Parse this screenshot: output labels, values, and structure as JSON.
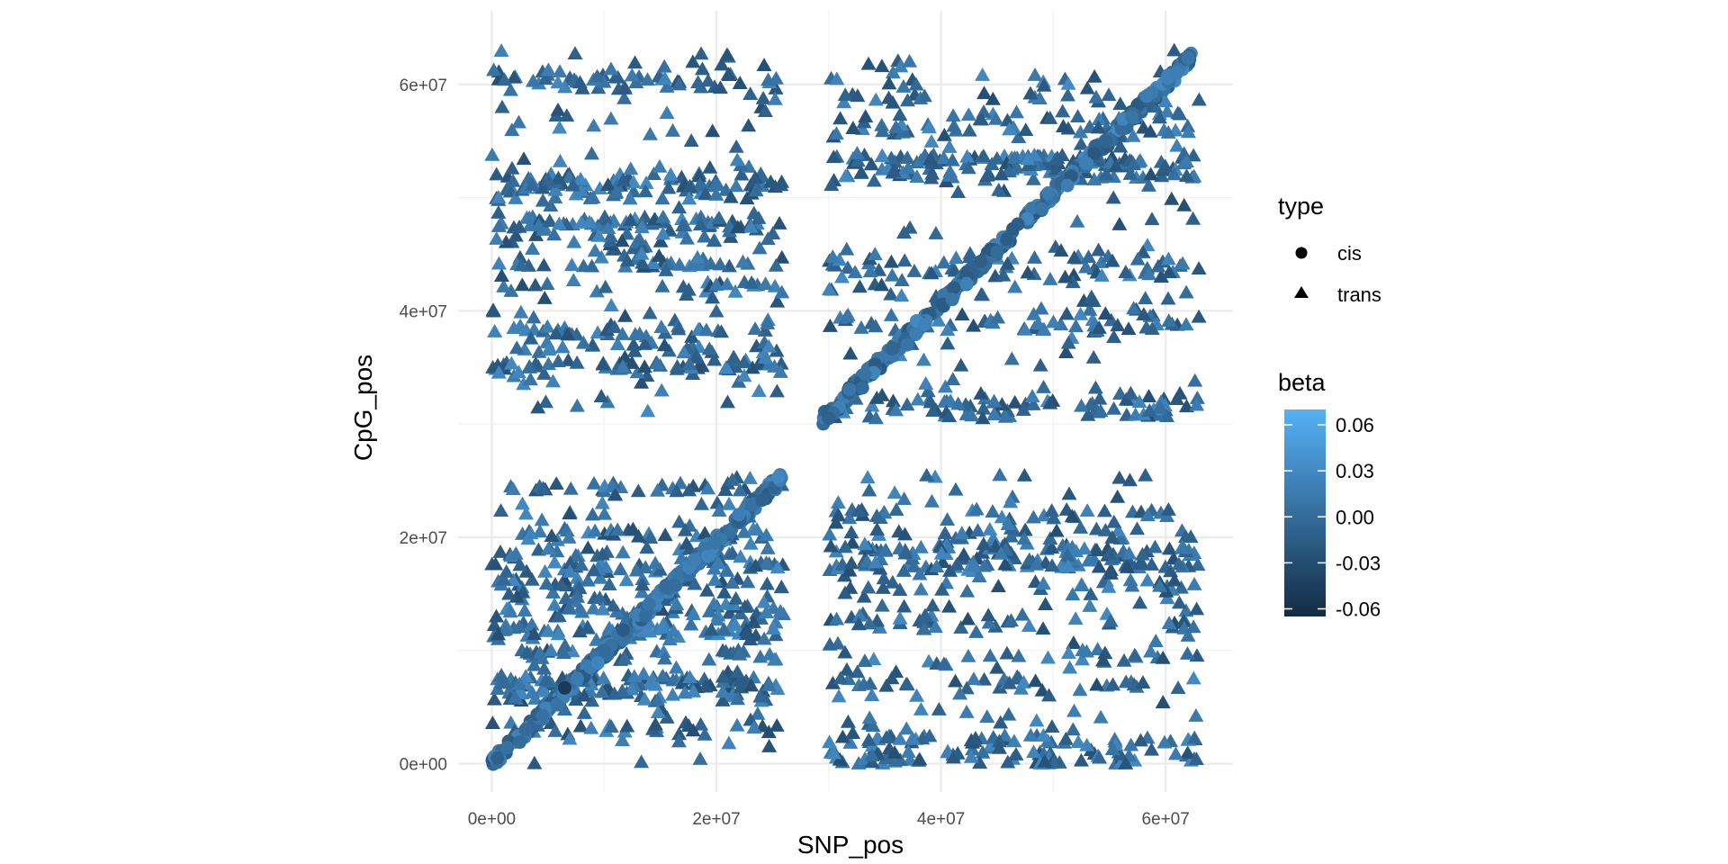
{
  "chart_data": {
    "type": "scatter",
    "title": "",
    "xlabel": "SNP_pos",
    "ylabel": "CpG_pos",
    "xlim": [
      -3000000,
      66000000
    ],
    "ylim": [
      -2500000,
      66500000
    ],
    "x_ticks": [
      0,
      20000000,
      40000000,
      60000000
    ],
    "x_tick_labels": [
      "0e+00",
      "2e+07",
      "4e+07",
      "6e+07"
    ],
    "y_ticks": [
      0,
      20000000,
      40000000,
      60000000
    ],
    "y_tick_labels": [
      "0e+00",
      "2e+07",
      "4e+07",
      "6e+07"
    ],
    "grid": true,
    "legend_position": "right",
    "shape_legend": {
      "title": "type",
      "entries": [
        {
          "label": "cis",
          "shape": "circle"
        },
        {
          "label": "trans",
          "shape": "triangle"
        }
      ]
    },
    "color_legend": {
      "title": "beta",
      "range": [
        -0.065,
        0.07
      ],
      "breaks": [
        0.06,
        0.03,
        0.0,
        -0.03,
        -0.06
      ],
      "break_labels": [
        "0.06",
        "0.03",
        "0.00",
        "-0.03",
        "-0.06"
      ],
      "low_color": "#132B43",
      "high_color": "#56B1F7"
    },
    "series": [
      {
        "name": "cis",
        "shape": "circle",
        "description_segments": [
          {
            "x_range": [
              0,
              26000000
            ],
            "y_relation": "y ≈ x",
            "y_range": [
              0,
              25500000
            ]
          },
          {
            "x_range": [
              29500000,
              62500000
            ],
            "y_relation": "y ≈ x",
            "y_range": [
              30500000,
              62500000
            ]
          }
        ],
        "points_approx": [
          [
            500000,
            500000,
            -0.01
          ],
          [
            3000000,
            3000000,
            0.0
          ],
          [
            6500000,
            6700000,
            -0.05
          ],
          [
            10000000,
            10000000,
            0.0
          ],
          [
            14000000,
            14100000,
            0.01
          ],
          [
            18000000,
            18000000,
            0.02
          ],
          [
            22000000,
            22000000,
            0.02
          ],
          [
            25500000,
            25300000,
            0.03
          ],
          [
            30000000,
            30500000,
            -0.01
          ],
          [
            33000000,
            33200000,
            0.0
          ],
          [
            37000000,
            37000000,
            0.01
          ],
          [
            41000000,
            41000000,
            0.01
          ],
          [
            45000000,
            45200000,
            0.0
          ],
          [
            49000000,
            49000000,
            0.01
          ],
          [
            53000000,
            53000000,
            0.02
          ],
          [
            57000000,
            57100000,
            0.01
          ],
          [
            61000000,
            61000000,
            0.02
          ],
          [
            62000000,
            62300000,
            0.01
          ]
        ]
      },
      {
        "name": "trans",
        "shape": "triangle",
        "blocks": [
          {
            "x_range": [
              0,
              26000000
            ],
            "y_range": [
              30500000,
              63000000
            ]
          },
          {
            "x_range": [
              30000000,
              63000000
            ],
            "y_range": [
              30500000,
              63000000
            ]
          },
          {
            "x_range": [
              0,
              26000000
            ],
            "y_range": [
              0,
              25500000
            ]
          },
          {
            "x_range": [
              30000000,
              63000000
            ],
            "y_range": [
              0,
              25500000
            ]
          }
        ],
        "beta_range": [
          -0.03,
          0.04
        ],
        "approx_count": 2200
      }
    ]
  }
}
